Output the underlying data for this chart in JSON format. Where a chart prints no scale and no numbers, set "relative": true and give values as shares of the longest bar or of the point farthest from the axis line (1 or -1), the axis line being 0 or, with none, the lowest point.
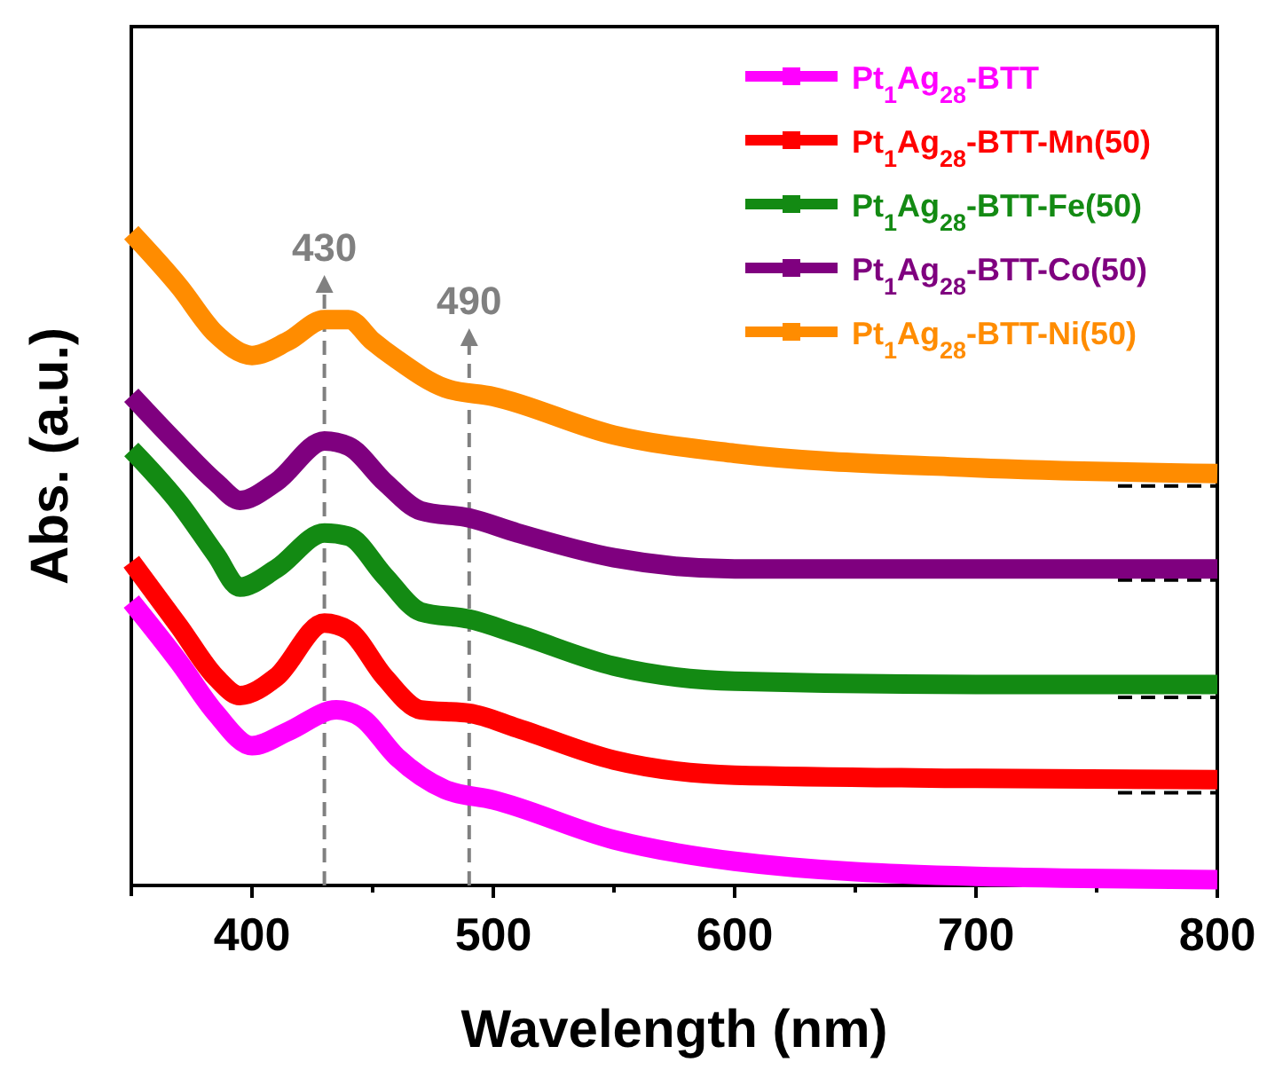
{
  "chart_data": {
    "type": "line",
    "relative": true,
    "xlabel": "Wavelength (nm)",
    "ylabel": "Abs. (a.u.)",
    "xlim": [
      350,
      800
    ],
    "xticks": [
      400,
      {
        "value": 450,
        "label": null
      },
      500,
      {
        "value": 550,
        "label": null
      },
      600,
      {
        "value": 650,
        "label": null
      },
      700,
      {
        "value": 750,
        "label": null
      },
      800
    ],
    "legend": "top right",
    "marker": "none",
    "line_style": "solid",
    "grid": false,
    "ref_lines": [
      {
        "axis": "x",
        "value": 430,
        "label": "430",
        "color": "#808080",
        "line_style": "dashed"
      },
      {
        "axis": "x",
        "value": 490,
        "label": "490",
        "color": "#808080",
        "line_style": "dashed"
      },
      {
        "axis": "y",
        "value": 0.612,
        "color": "#000000",
        "line_style": "dashed"
      },
      {
        "axis": "y",
        "value": 0.468,
        "color": "#000000",
        "line_style": "dashed"
      },
      {
        "axis": "y",
        "value": 0.288,
        "color": "#000000",
        "line_style": "dashed"
      },
      {
        "axis": "y",
        "value": 0.142,
        "color": "#000000",
        "line_style": "dashed"
      }
    ],
    "series": [
      {
        "name": "Pt$_{1}$Ag$_{28}$-BTT",
        "color": "#ff00ff",
        "x": [
          350,
          370,
          385,
          400,
          415,
          435,
          445,
          460,
          480,
          500,
          550,
          600,
          700,
          800
        ],
        "values": [
          0.435,
          0.341,
          0.264,
          0.214,
          0.236,
          0.269,
          0.258,
          0.197,
          0.147,
          0.131,
          0.07,
          0.037,
          0.014,
          0.009
        ]
      },
      {
        "name": "Pt$_{1}$Ag$_{28}$-BTT-Mn(50)",
        "color": "#ff0000",
        "x": [
          350,
          370,
          385,
          395,
          410,
          430,
          440,
          455,
          470,
          490,
          510,
          550,
          600,
          700,
          800
        ],
        "values": [
          0.496,
          0.396,
          0.319,
          0.291,
          0.319,
          0.402,
          0.391,
          0.319,
          0.269,
          0.264,
          0.241,
          0.192,
          0.169,
          0.164,
          0.162
        ]
      },
      {
        "name": "Pt$_{1}$Ag$_{28}$-BTT-Fe(50)",
        "color": "#138a13",
        "x": [
          350,
          370,
          385,
          395,
          410,
          430,
          440,
          455,
          470,
          490,
          510,
          550,
          600,
          700,
          800
        ],
        "values": [
          0.668,
          0.585,
          0.507,
          0.457,
          0.485,
          0.54,
          0.535,
          0.474,
          0.419,
          0.408,
          0.385,
          0.336,
          0.313,
          0.308,
          0.308
        ]
      },
      {
        "name": "Pt$_{1}$Ag$_{28}$-BTT-Co(50)",
        "color": "#7f007f",
        "x": [
          350,
          370,
          385,
          395,
          410,
          430,
          440,
          455,
          470,
          490,
          510,
          550,
          600,
          700,
          800
        ],
        "values": [
          0.751,
          0.673,
          0.618,
          0.59,
          0.618,
          0.681,
          0.673,
          0.618,
          0.574,
          0.563,
          0.54,
          0.502,
          0.485,
          0.485,
          0.485
        ]
      },
      {
        "name": "Pt$_{1}$Ag$_{28}$-BTT-Ni(50)",
        "color": "#ff8c00",
        "x": [
          350,
          370,
          385,
          400,
          415,
          430,
          440,
          450,
          460,
          480,
          500,
          550,
          600,
          700,
          800
        ],
        "values": [
          1.0,
          0.917,
          0.845,
          0.812,
          0.834,
          0.867,
          0.867,
          0.834,
          0.806,
          0.762,
          0.749,
          0.69,
          0.662,
          0.64,
          0.631
        ]
      }
    ]
  }
}
